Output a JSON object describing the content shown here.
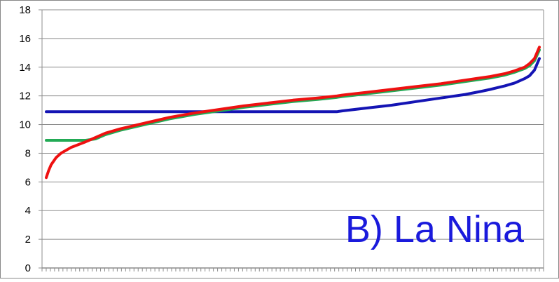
{
  "chart_data": {
    "type": "line",
    "title": "",
    "xlabel": "",
    "ylabel": "",
    "ylim": [
      0,
      18
    ],
    "yticks": [
      0,
      2,
      4,
      6,
      8,
      10,
      12,
      14,
      16,
      18
    ],
    "x_tick_count": 120,
    "grid": {
      "horizontal": true,
      "vertical": false
    },
    "legend": "none",
    "annotation": "B) La Nina",
    "x": [
      0,
      0.005,
      0.01,
      0.02,
      0.03,
      0.05,
      0.08,
      0.1,
      0.12,
      0.15,
      0.2,
      0.25,
      0.3,
      0.35,
      0.4,
      0.45,
      0.5,
      0.55,
      0.59,
      0.6,
      0.65,
      0.7,
      0.75,
      0.8,
      0.85,
      0.88,
      0.9,
      0.93,
      0.95,
      0.97,
      0.98,
      0.99,
      1.0
    ],
    "series": [
      {
        "color": "#ee1111",
        "values": [
          6.3,
          6.8,
          7.2,
          7.7,
          8.0,
          8.4,
          8.8,
          9.1,
          9.4,
          9.7,
          10.1,
          10.5,
          10.8,
          11.05,
          11.3,
          11.5,
          11.7,
          11.85,
          12.0,
          12.05,
          12.25,
          12.45,
          12.65,
          12.85,
          13.1,
          13.25,
          13.35,
          13.55,
          13.75,
          14.0,
          14.25,
          14.6,
          15.4
        ]
      },
      {
        "color": "#22aa55",
        "values": [
          8.9,
          8.9,
          8.9,
          8.9,
          8.9,
          8.9,
          8.9,
          9.0,
          9.3,
          9.6,
          10.0,
          10.4,
          10.7,
          10.95,
          11.2,
          11.4,
          11.6,
          11.75,
          11.9,
          11.95,
          12.15,
          12.35,
          12.55,
          12.75,
          13.0,
          13.15,
          13.25,
          13.45,
          13.65,
          13.9,
          14.1,
          14.45,
          15.2
        ]
      },
      {
        "color": "#1414b4",
        "values": [
          10.9,
          10.9,
          10.9,
          10.9,
          10.9,
          10.9,
          10.9,
          10.9,
          10.9,
          10.9,
          10.9,
          10.9,
          10.9,
          10.9,
          10.9,
          10.9,
          10.9,
          10.9,
          10.9,
          10.95,
          11.15,
          11.35,
          11.6,
          11.85,
          12.1,
          12.3,
          12.45,
          12.7,
          12.9,
          13.2,
          13.4,
          13.8,
          14.6
        ]
      }
    ]
  }
}
